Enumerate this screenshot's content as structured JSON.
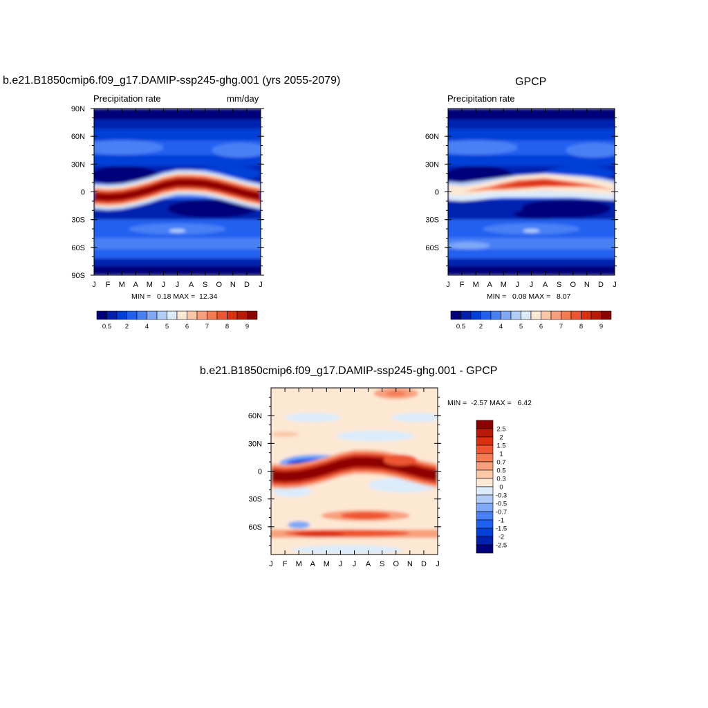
{
  "panels": {
    "model": {
      "title": "b.e21.B1850cmip6.f09_g17.DAMIP-ssp245-ghg.001 (yrs 2055-2079)",
      "left_label": "Precipitation rate",
      "right_label": "mm/day",
      "minmax": "MIN =   0.18 MAX =  12.34"
    },
    "obs": {
      "title": "GPCP",
      "left_label": "Precipitation rate",
      "right_label": "",
      "minmax": "MIN =   0.08 MAX =   8.07"
    },
    "diff": {
      "title": "b.e21.B1850cmip6.f09_g17.DAMIP-ssp245-ghg.001 - GPCP",
      "minmax": "MIN =  -2.57 MAX =   6.42"
    }
  },
  "chart_data": [
    {
      "type": "heatmap",
      "name": "model-precip",
      "title": "b.e21.B1850cmip6.f09_g17.DAMIP-ssp245-ghg.001 (yrs 2055-2079)",
      "xlabel": "",
      "ylabel": "",
      "x_ticks": [
        "J",
        "F",
        "M",
        "A",
        "M",
        "J",
        "J",
        "A",
        "S",
        "O",
        "N",
        "D",
        "J"
      ],
      "y_ticks": [
        "90N",
        "60N",
        "30N",
        "0",
        "30S",
        "60S",
        "90S"
      ],
      "y_tick_values": [
        90,
        60,
        30,
        0,
        -30,
        -60,
        -90
      ],
      "ylim": [
        -90,
        90
      ],
      "units": "mm/day",
      "min": 0.18,
      "max": 12.34,
      "itcz_latitude_by_month": [
        -5,
        -6,
        -5,
        -2,
        2,
        7,
        10,
        10,
        9,
        6,
        2,
        -2,
        -5
      ],
      "colorbar": {
        "levels": [
          "0.5",
          "2",
          "4",
          "5",
          "6",
          "7",
          "8",
          "9"
        ],
        "colors": [
          "#00007a",
          "#0020b0",
          "#0040d8",
          "#2060f0",
          "#4a80f6",
          "#7fa8f8",
          "#b2cdf8",
          "#dcecfb",
          "#fde8d4",
          "#fbc8a8",
          "#f8a07c",
          "#f57b54",
          "#ee5530",
          "#dc2f12",
          "#b81a08",
          "#8c0000",
          "#6a0000"
        ]
      }
    },
    {
      "type": "heatmap",
      "name": "gpcp-precip",
      "title": "GPCP",
      "x_ticks": [
        "J",
        "F",
        "M",
        "A",
        "M",
        "J",
        "J",
        "A",
        "S",
        "O",
        "N",
        "D",
        "J"
      ],
      "y_ticks": [
        "60N",
        "30N",
        "0",
        "30S",
        "60S"
      ],
      "y_tick_values": [
        60,
        30,
        0,
        -30,
        -60
      ],
      "ylim": [
        -90,
        90
      ],
      "units": "mm/day",
      "min": 0.08,
      "max": 8.07,
      "itcz_latitude_by_month": [
        1,
        0,
        2,
        4,
        6,
        8,
        9,
        10,
        9,
        8,
        7,
        5,
        2
      ],
      "colorbar": {
        "levels": [
          "0.5",
          "2",
          "4",
          "5",
          "6",
          "7",
          "8",
          "9"
        ]
      }
    },
    {
      "type": "heatmap",
      "name": "difference",
      "title": "b.e21.B1850cmip6.f09_g17.DAMIP-ssp245-ghg.001 - GPCP",
      "x_ticks": [
        "J",
        "F",
        "M",
        "A",
        "M",
        "J",
        "J",
        "A",
        "S",
        "O",
        "N",
        "D",
        "J"
      ],
      "y_ticks": [
        "60N",
        "30N",
        "0",
        "30S",
        "60S"
      ],
      "y_tick_values": [
        60,
        30,
        0,
        -30,
        -60
      ],
      "ylim": [
        -90,
        90
      ],
      "min": -2.57,
      "max": 6.42,
      "itcz_latitude_by_month": [
        -5,
        -6,
        -5,
        -2,
        2,
        7,
        10,
        10,
        9,
        6,
        2,
        -2,
        -5
      ],
      "colorbar": {
        "levels": [
          "2.5",
          "2",
          "1.5",
          "1",
          "0.7",
          "0.5",
          "0.3",
          "0",
          "-0.3",
          "-0.5",
          "-0.7",
          "-1",
          "-1.5",
          "-2",
          "-2.5"
        ],
        "colors": [
          "#8c0000",
          "#b81a08",
          "#dc2f12",
          "#ee5530",
          "#f57b54",
          "#f8a07c",
          "#fbc8a8",
          "#fde8d4",
          "#dcecfb",
          "#b2cdf8",
          "#7fa8f8",
          "#4a80f6",
          "#2060f0",
          "#0040d8",
          "#0020b0",
          "#00007a"
        ]
      }
    }
  ]
}
